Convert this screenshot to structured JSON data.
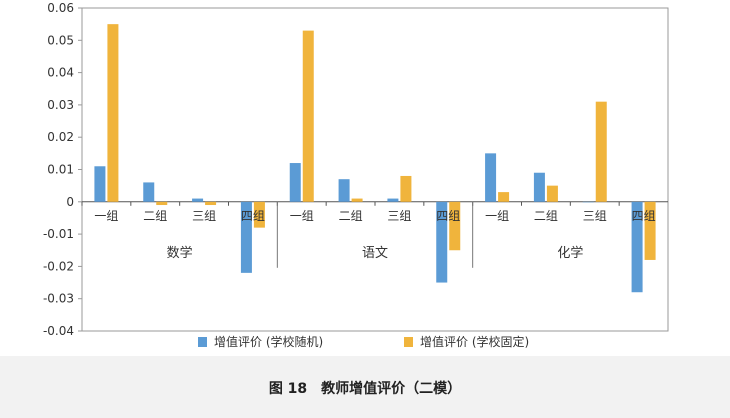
{
  "chart_data": {
    "type": "bar",
    "groups": [
      {
        "label": "数学",
        "categories": [
          "一组",
          "二组",
          "三组",
          "四组"
        ]
      },
      {
        "label": "语文",
        "categories": [
          "一组",
          "二组",
          "三组",
          "四组"
        ]
      },
      {
        "label": "化学",
        "categories": [
          "一组",
          "二组",
          "三组",
          "四组"
        ]
      }
    ],
    "series": [
      {
        "name": "增值评价 (学校随机)",
        "color": "#5b9bd5",
        "values": [
          0.011,
          0.006,
          0.001,
          -0.022,
          0.012,
          0.007,
          0.001,
          -0.025,
          0.015,
          0.009,
          0.0,
          -0.028
        ]
      },
      {
        "name": "增值评价 (学校固定)",
        "color": "#f0b43c",
        "values": [
          0.055,
          -0.001,
          -0.001,
          -0.008,
          0.053,
          0.001,
          0.008,
          -0.015,
          0.003,
          0.005,
          0.031,
          -0.018
        ]
      }
    ],
    "yticks": [
      "0.06",
      "0.05",
      "0.04",
      "0.03",
      "0.02",
      "0.01",
      "0",
      "-0.01",
      "-0.02",
      "-0.03",
      "-0.04"
    ],
    "ylim": [
      -0.04,
      0.06
    ],
    "legend_position": "bottom"
  },
  "caption": "图 18　教师增值评价（二模）"
}
